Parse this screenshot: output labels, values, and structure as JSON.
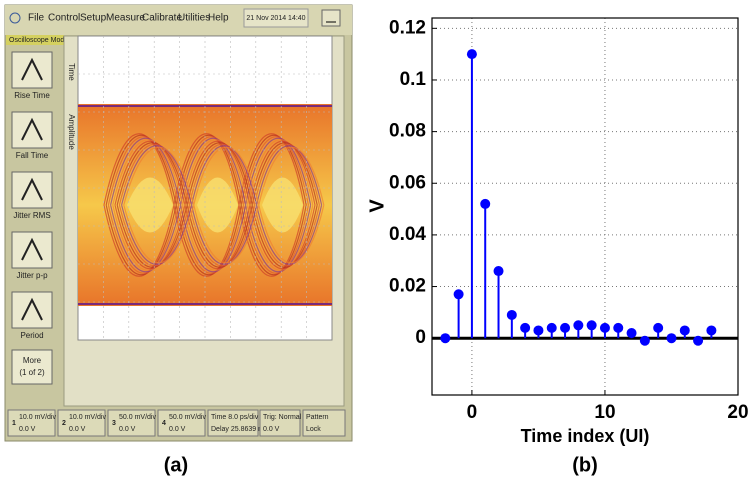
{
  "scope": {
    "menu": [
      "File",
      "Control",
      "Setup",
      "Measure",
      "Calibrate",
      "Utilities",
      "Help"
    ],
    "datetime": "21 Nov 2014  14:40",
    "mode": "Oscilloscope Mode",
    "tabs": [
      "Time",
      "Amplitude"
    ],
    "buttons": [
      "Rise Time",
      "Fall Time",
      "Jitter RMS",
      "Jitter p-p",
      "Period"
    ],
    "more": [
      "More",
      "(1 of 2)"
    ],
    "channels": [
      {
        "id": "1",
        "scale": "10.0 mV/div",
        "offset": "0.0 V"
      },
      {
        "id": "2",
        "scale": "10.0 mV/div",
        "offset": "0.0 V"
      },
      {
        "id": "3",
        "scale": "50.0 mV/div",
        "offset": "0.0 V"
      },
      {
        "id": "4",
        "scale": "50.0 mV/div",
        "offset": "0.0 V"
      }
    ],
    "timebase": [
      "Time 8.0 ps/div",
      "Delay 25.8639 ns"
    ],
    "trigger": [
      "Trig: Normal",
      "0.0 V"
    ],
    "pattern": [
      "Pattern",
      "Lock"
    ]
  },
  "captions": [
    "(a)",
    "(b)"
  ],
  "chart_data": {
    "type": "stem",
    "x_label": "Time index (UI)",
    "y_label": "V",
    "x": [
      -2,
      -1,
      0,
      1,
      2,
      3,
      4,
      5,
      6,
      7,
      8,
      9,
      10,
      11,
      12,
      13,
      14,
      15,
      16,
      17,
      18
    ],
    "values": [
      0,
      0.017,
      0.11,
      0.052,
      0.026,
      0.009,
      0.004,
      0.003,
      0.004,
      0.004,
      0.005,
      0.005,
      0.004,
      0.004,
      0.002,
      -0.001,
      0.004,
      0,
      0.003,
      -0.001,
      0.003
    ],
    "color": "#0000ff",
    "xlim": [
      -3,
      20
    ],
    "ylim": [
      -0.022,
      0.124
    ],
    "xticks": [
      0,
      10,
      20
    ],
    "yticks": [
      0,
      0.02,
      0.04,
      0.06,
      0.08,
      0.1,
      0.12
    ],
    "grid": true
  }
}
